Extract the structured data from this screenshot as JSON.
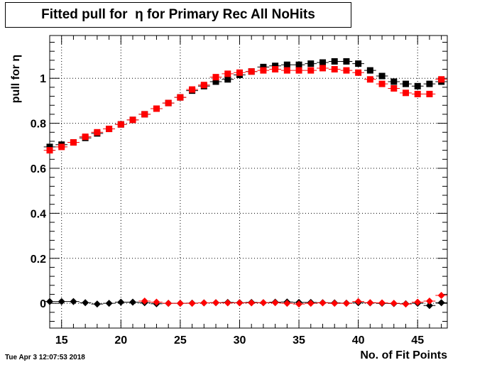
{
  "timestamp": "Tue Apr  3 12:07:53 2018",
  "colors": {
    "series_black": "#000000",
    "series_red": "#ff0000",
    "grid": "#000000"
  },
  "chart_data": {
    "type": "scatter",
    "title": "Fitted pull for  η for Primary Rec All NoHits",
    "xlabel": "No. of Fit Points",
    "ylabel": "pull for  η",
    "xlim": [
      14,
      47.5
    ],
    "ylim": [
      -0.11,
      1.19
    ],
    "x_ticks": [
      15,
      20,
      25,
      30,
      35,
      40,
      45
    ],
    "y_ticks": [
      0,
      0.2,
      0.4,
      0.6,
      0.8,
      1
    ],
    "grid": true,
    "x": [
      14,
      15,
      16,
      17,
      18,
      19,
      20,
      21,
      22,
      23,
      24,
      25,
      26,
      27,
      28,
      29,
      30,
      31,
      32,
      33,
      34,
      35,
      36,
      37,
      38,
      39,
      40,
      41,
      42,
      43,
      44,
      45,
      46,
      47
    ],
    "series": [
      {
        "marker": "square",
        "color": "#000000",
        "values": [
          0.695,
          0.705,
          0.715,
          0.735,
          0.755,
          0.775,
          0.795,
          0.815,
          0.84,
          0.865,
          0.89,
          0.915,
          0.945,
          0.965,
          0.985,
          0.995,
          1.015,
          1.03,
          1.05,
          1.055,
          1.06,
          1.06,
          1.065,
          1.07,
          1.075,
          1.075,
          1.065,
          1.035,
          1.01,
          0.985,
          0.975,
          0.965,
          0.975,
          0.985
        ]
      },
      {
        "marker": "square",
        "color": "#ff0000",
        "values": [
          0.68,
          0.695,
          0.715,
          0.74,
          0.76,
          0.775,
          0.795,
          0.815,
          0.84,
          0.865,
          0.89,
          0.915,
          0.95,
          0.97,
          1.005,
          1.02,
          1.025,
          1.03,
          1.035,
          1.04,
          1.035,
          1.035,
          1.035,
          1.045,
          1.04,
          1.035,
          1.025,
          0.995,
          0.975,
          0.955,
          0.935,
          0.93,
          0.93,
          0.995
        ]
      },
      {
        "marker": "diamond",
        "color": "#000000",
        "values": [
          0.008,
          0.008,
          0.008,
          0.003,
          -0.003,
          0.0,
          0.005,
          0.005,
          0.003,
          -0.002,
          0.0,
          0.0,
          0.001,
          0.002,
          0.003,
          0.004,
          0.003,
          0.004,
          0.003,
          0.005,
          0.006,
          0.004,
          0.004,
          0.003,
          0.002,
          0.001,
          0.003,
          0.002,
          0.0,
          -0.001,
          -0.002,
          0.0,
          -0.01,
          0.003
        ]
      },
      {
        "marker": "diamond",
        "color": "#ff0000",
        "values": [
          null,
          null,
          null,
          null,
          null,
          null,
          null,
          null,
          0.01,
          0.005,
          0.0,
          0.0,
          0.0,
          0.002,
          0.003,
          0.002,
          0.002,
          0.002,
          0.003,
          0.003,
          0.0,
          -0.003,
          0.0,
          0.002,
          0.0,
          0.0,
          0.008,
          0.003,
          0.002,
          0.0,
          -0.003,
          0.005,
          0.01,
          0.035
        ]
      }
    ]
  }
}
